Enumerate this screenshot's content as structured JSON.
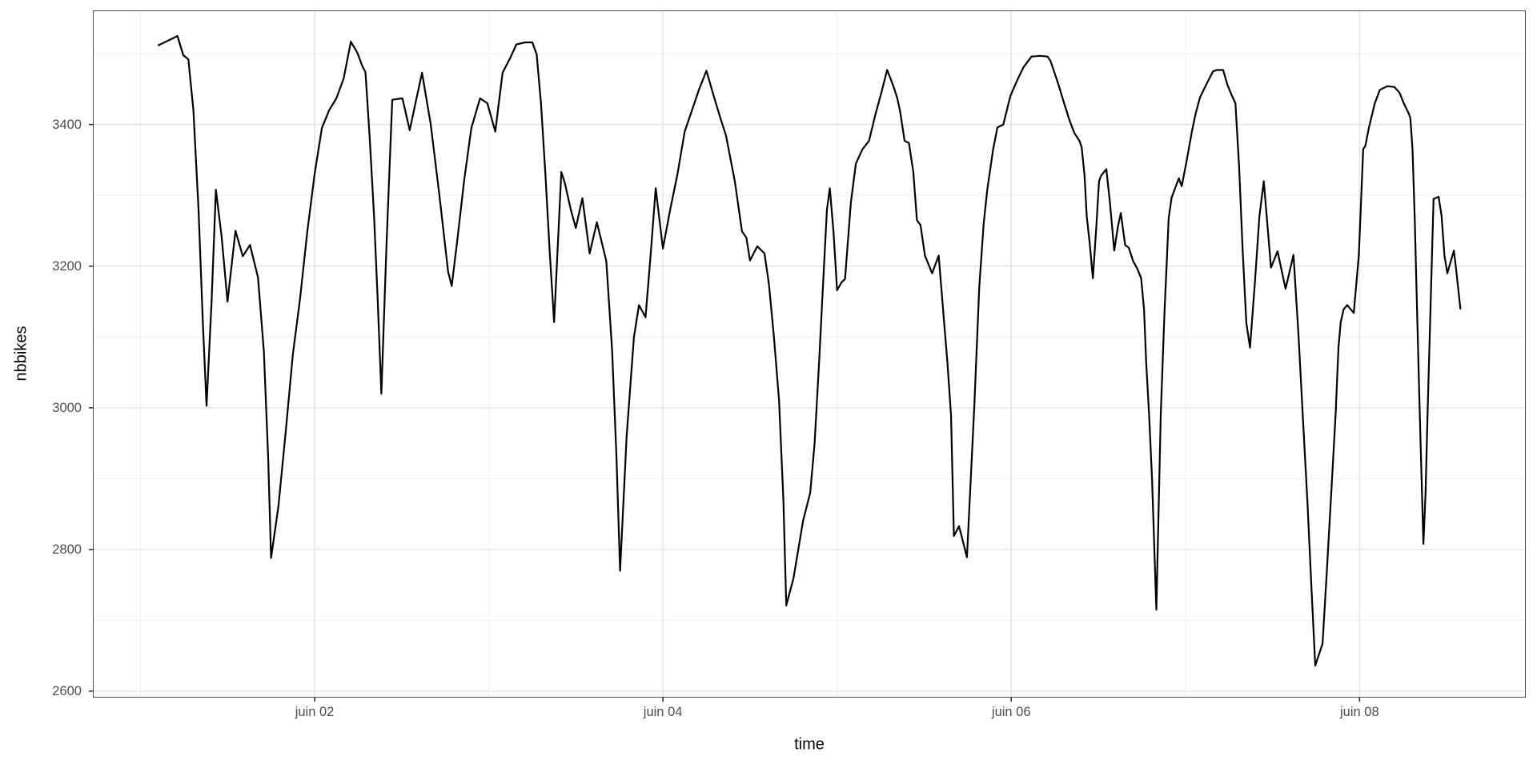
{
  "figure": {
    "x_axis_title": "time",
    "y_axis_title": "nbbikes"
  },
  "chart_data": {
    "type": "line",
    "title": "",
    "xlabel": "time",
    "ylabel": "nbbikes",
    "legend_position": "none",
    "grid": "major and minor, light gray on white (ggplot theme_bw)",
    "x_unit": "hours since juin 01 00:00",
    "xlim": [
      -6.45,
      190.8
    ],
    "ylim": [
      2592,
      3560
    ],
    "x_major_breaks": [
      {
        "t": 24,
        "label": "juin 02"
      },
      {
        "t": 72,
        "label": "juin 04"
      },
      {
        "t": 120,
        "label": "juin 06"
      },
      {
        "t": 168,
        "label": "juin 08"
      }
    ],
    "x_minor_breaks": [
      0,
      48,
      96,
      144,
      192
    ],
    "y_major_breaks": [
      2600,
      2800,
      3000,
      3200,
      3400
    ],
    "y_minor_breaks": [
      2500,
      2700,
      2900,
      3100,
      3300,
      3500
    ],
    "colors": {
      "line": "#000000",
      "grid_major": "#e3e3e3",
      "grid_minor": "#f0f0f0",
      "panel_border": "#4d4d4d",
      "tick_mark": "#333333",
      "tick_text": "#4d4d4d",
      "axis_title_text": "#000000"
    },
    "series": [
      {
        "name": "nbbikes",
        "points": [
          [
            2.5,
            3512
          ],
          [
            3.7,
            3518
          ],
          [
            5.1,
            3525
          ],
          [
            5.9,
            3498
          ],
          [
            6.6,
            3492
          ],
          [
            7.3,
            3420
          ],
          [
            8.0,
            3280
          ],
          [
            8.6,
            3120
          ],
          [
            9.1,
            3003
          ],
          [
            9.8,
            3150
          ],
          [
            10.4,
            3308
          ],
          [
            11.2,
            3240
          ],
          [
            12.0,
            3150
          ],
          [
            13.1,
            3250
          ],
          [
            14.1,
            3214
          ],
          [
            15.1,
            3230
          ],
          [
            16.2,
            3184
          ],
          [
            17.0,
            3080
          ],
          [
            17.6,
            2930
          ],
          [
            18.0,
            2788
          ],
          [
            19.0,
            2860
          ],
          [
            20.0,
            2965
          ],
          [
            21.0,
            3075
          ],
          [
            22.0,
            3155
          ],
          [
            23.0,
            3250
          ],
          [
            24.0,
            3330
          ],
          [
            25.0,
            3395
          ],
          [
            26.0,
            3420
          ],
          [
            27.0,
            3437
          ],
          [
            28.0,
            3465
          ],
          [
            29.0,
            3517
          ],
          [
            29.9,
            3501
          ],
          [
            30.6,
            3482
          ],
          [
            31.0,
            3474
          ],
          [
            31.6,
            3380
          ],
          [
            32.2,
            3270
          ],
          [
            32.7,
            3150
          ],
          [
            33.2,
            3020
          ],
          [
            33.9,
            3230
          ],
          [
            34.7,
            3435
          ],
          [
            36.1,
            3437
          ],
          [
            37.1,
            3392
          ],
          [
            38.0,
            3435
          ],
          [
            38.8,
            3473
          ],
          [
            40.0,
            3400
          ],
          [
            41.2,
            3300
          ],
          [
            42.4,
            3192
          ],
          [
            42.9,
            3172
          ],
          [
            43.7,
            3240
          ],
          [
            44.6,
            3320
          ],
          [
            45.6,
            3395
          ],
          [
            46.8,
            3437
          ],
          [
            47.8,
            3430
          ],
          [
            48.9,
            3390
          ],
          [
            49.9,
            3473
          ],
          [
            51.0,
            3495
          ],
          [
            51.8,
            3513
          ],
          [
            53.0,
            3516
          ],
          [
            54.0,
            3516
          ],
          [
            54.6,
            3499
          ],
          [
            55.2,
            3430
          ],
          [
            55.8,
            3330
          ],
          [
            56.4,
            3220
          ],
          [
            57.0,
            3121
          ],
          [
            58.0,
            3333
          ],
          [
            58.5,
            3317
          ],
          [
            59.3,
            3280
          ],
          [
            60.0,
            3254
          ],
          [
            60.9,
            3296
          ],
          [
            61.9,
            3218
          ],
          [
            62.9,
            3262
          ],
          [
            64.2,
            3207
          ],
          [
            65.0,
            3080
          ],
          [
            65.6,
            2930
          ],
          [
            66.1,
            2770
          ],
          [
            67.0,
            2960
          ],
          [
            68.0,
            3100
          ],
          [
            68.7,
            3145
          ],
          [
            69.6,
            3128
          ],
          [
            70.3,
            3215
          ],
          [
            71.0,
            3310
          ],
          [
            72.0,
            3225
          ],
          [
            73.0,
            3280
          ],
          [
            74.0,
            3330
          ],
          [
            75.0,
            3390
          ],
          [
            76.0,
            3420
          ],
          [
            77.0,
            3450
          ],
          [
            78.0,
            3476
          ],
          [
            79.0,
            3440
          ],
          [
            79.9,
            3410
          ],
          [
            80.7,
            3384
          ],
          [
            81.9,
            3320
          ],
          [
            82.9,
            3249
          ],
          [
            83.5,
            3240
          ],
          [
            84.0,
            3208
          ],
          [
            85.0,
            3228
          ],
          [
            86.0,
            3218
          ],
          [
            86.6,
            3175
          ],
          [
            87.3,
            3100
          ],
          [
            88.0,
            3010
          ],
          [
            88.6,
            2870
          ],
          [
            89.0,
            2721
          ],
          [
            90.0,
            2760
          ],
          [
            91.3,
            2840
          ],
          [
            92.3,
            2880
          ],
          [
            92.9,
            2950
          ],
          [
            93.5,
            3060
          ],
          [
            94.1,
            3180
          ],
          [
            94.6,
            3280
          ],
          [
            95.0,
            3310
          ],
          [
            95.5,
            3250
          ],
          [
            96.0,
            3166
          ],
          [
            96.6,
            3177
          ],
          [
            97.1,
            3182
          ],
          [
            97.9,
            3290
          ],
          [
            98.6,
            3345
          ],
          [
            99.5,
            3365
          ],
          [
            100.4,
            3377
          ],
          [
            101.3,
            3415
          ],
          [
            102.1,
            3445
          ],
          [
            102.9,
            3477
          ],
          [
            103.7,
            3456
          ],
          [
            104.3,
            3437
          ],
          [
            104.7,
            3418
          ],
          [
            105.3,
            3377
          ],
          [
            105.9,
            3374
          ],
          [
            106.5,
            3333
          ],
          [
            107.0,
            3265
          ],
          [
            107.5,
            3258
          ],
          [
            108.1,
            3215
          ],
          [
            108.7,
            3200
          ],
          [
            109.1,
            3190
          ],
          [
            110.0,
            3215
          ],
          [
            110.6,
            3140
          ],
          [
            111.2,
            3064
          ],
          [
            111.7,
            2990
          ],
          [
            112.1,
            2819
          ],
          [
            112.8,
            2833
          ],
          [
            113.9,
            2789
          ],
          [
            114.9,
            3000
          ],
          [
            115.6,
            3171
          ],
          [
            116.2,
            3260
          ],
          [
            116.7,
            3308
          ],
          [
            117.5,
            3365
          ],
          [
            118.1,
            3396
          ],
          [
            118.9,
            3400
          ],
          [
            119.9,
            3441
          ],
          [
            120.8,
            3462
          ],
          [
            121.7,
            3481
          ],
          [
            122.8,
            3496
          ],
          [
            124.0,
            3497
          ],
          [
            125.0,
            3496
          ],
          [
            125.4,
            3490
          ],
          [
            125.9,
            3475
          ],
          [
            126.4,
            3460
          ],
          [
            127.2,
            3433
          ],
          [
            128.0,
            3407
          ],
          [
            128.7,
            3388
          ],
          [
            129.4,
            3377
          ],
          [
            129.7,
            3368
          ],
          [
            130.1,
            3328
          ],
          [
            130.4,
            3271
          ],
          [
            130.8,
            3234
          ],
          [
            131.25,
            3183
          ],
          [
            131.7,
            3252
          ],
          [
            132.1,
            3320
          ],
          [
            132.4,
            3328
          ],
          [
            133.1,
            3337
          ],
          [
            133.6,
            3290
          ],
          [
            134.2,
            3222
          ],
          [
            134.7,
            3256
          ],
          [
            135.1,
            3275
          ],
          [
            135.7,
            3230
          ],
          [
            136.2,
            3226
          ],
          [
            136.8,
            3207
          ],
          [
            137.4,
            3196
          ],
          [
            137.9,
            3183
          ],
          [
            138.3,
            3139
          ],
          [
            138.6,
            3064
          ],
          [
            139.0,
            2989
          ],
          [
            139.4,
            2900
          ],
          [
            140.0,
            2715
          ],
          [
            140.6,
            2990
          ],
          [
            141.1,
            3130
          ],
          [
            141.7,
            3268
          ],
          [
            142.1,
            3297
          ],
          [
            143.1,
            3324
          ],
          [
            143.5,
            3313
          ],
          [
            144.1,
            3345
          ],
          [
            144.9,
            3390
          ],
          [
            145.4,
            3415
          ],
          [
            146.0,
            3438
          ],
          [
            146.9,
            3457
          ],
          [
            147.8,
            3475
          ],
          [
            148.3,
            3477
          ],
          [
            149.2,
            3477
          ],
          [
            149.8,
            3456
          ],
          [
            150.4,
            3441
          ],
          [
            150.9,
            3430
          ],
          [
            151.4,
            3340
          ],
          [
            151.9,
            3220
          ],
          [
            152.4,
            3120
          ],
          [
            152.9,
            3085
          ],
          [
            153.6,
            3180
          ],
          [
            154.2,
            3270
          ],
          [
            154.8,
            3320
          ],
          [
            155.8,
            3198
          ],
          [
            156.7,
            3221
          ],
          [
            157.8,
            3168
          ],
          [
            158.9,
            3216
          ],
          [
            159.6,
            3100
          ],
          [
            160.2,
            2985
          ],
          [
            160.8,
            2870
          ],
          [
            161.4,
            2740
          ],
          [
            161.9,
            2636
          ],
          [
            162.9,
            2667
          ],
          [
            163.5,
            2770
          ],
          [
            164.1,
            2880
          ],
          [
            164.7,
            2990
          ],
          [
            165.1,
            3085
          ],
          [
            165.4,
            3121
          ],
          [
            165.8,
            3139
          ],
          [
            166.3,
            3145
          ],
          [
            167.2,
            3134
          ],
          [
            167.6,
            3180
          ],
          [
            167.9,
            3215
          ],
          [
            168.5,
            3365
          ],
          [
            168.8,
            3370
          ],
          [
            169.3,
            3396
          ],
          [
            170.1,
            3430
          ],
          [
            170.8,
            3449
          ],
          [
            171.8,
            3454
          ],
          [
            172.8,
            3453
          ],
          [
            173.5,
            3445
          ],
          [
            174.1,
            3430
          ],
          [
            174.8,
            3415
          ],
          [
            175.0,
            3409
          ],
          [
            175.3,
            3365
          ],
          [
            175.6,
            3270
          ],
          [
            175.9,
            3150
          ],
          [
            176.3,
            2990
          ],
          [
            176.8,
            2808
          ],
          [
            177.1,
            2880
          ],
          [
            177.4,
            3000
          ],
          [
            177.8,
            3150
          ],
          [
            178.2,
            3295
          ],
          [
            178.9,
            3298
          ],
          [
            179.3,
            3271
          ],
          [
            179.7,
            3215
          ],
          [
            180.1,
            3190
          ],
          [
            181.0,
            3222
          ],
          [
            181.3,
            3196
          ],
          [
            181.9,
            3140
          ]
        ]
      }
    ]
  }
}
